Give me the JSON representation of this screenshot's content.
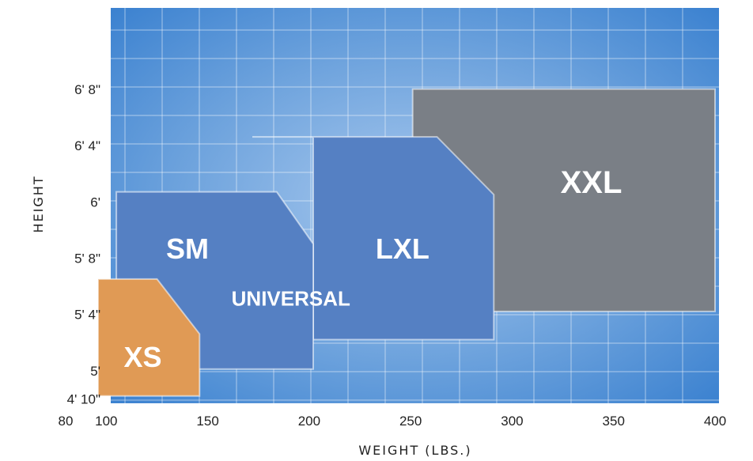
{
  "chart_data": {
    "type": "area",
    "xlabel": "WEIGHT (LBS.)",
    "ylabel": "HEIGHT",
    "x_ticks": [
      {
        "value": 80,
        "label": "80"
      },
      {
        "value": 100,
        "label": "100"
      },
      {
        "value": 150,
        "label": "150"
      },
      {
        "value": 200,
        "label": "200"
      },
      {
        "value": 250,
        "label": "250"
      },
      {
        "value": 300,
        "label": "300"
      },
      {
        "value": 350,
        "label": "350"
      },
      {
        "value": 400,
        "label": "400"
      }
    ],
    "y_ticks": [
      {
        "value": 58,
        "label": "4' 10\""
      },
      {
        "value": 60,
        "label": "5'"
      },
      {
        "value": 64,
        "label": "5' 4\""
      },
      {
        "value": 68,
        "label": "5' 8\""
      },
      {
        "value": 72,
        "label": "6'"
      },
      {
        "value": 76,
        "label": "6' 4\""
      },
      {
        "value": 80,
        "label": "6' 8\""
      }
    ],
    "xlim": [
      80,
      400
    ],
    "ylim": [
      58,
      82
    ],
    "regions": [
      {
        "name": "XXL",
        "color": "#7a7f86",
        "polygon": [
          [
            251,
            80.1
          ],
          [
            400,
            80.1
          ],
          [
            400,
            64.3
          ],
          [
            251,
            64.3
          ]
        ],
        "label": {
          "text": "XXL",
          "x": 339,
          "y": 73.3,
          "size": 40
        }
      },
      {
        "name": "LXL",
        "color": "#5580c3",
        "polygon": [
          [
            172,
            76.7
          ],
          [
            263,
            76.7
          ],
          [
            291,
            72.6
          ],
          [
            291,
            64.3
          ],
          [
            291,
            62.3
          ],
          [
            202,
            62.3
          ],
          [
            202,
            76.7
          ]
        ],
        "label": {
          "text": "LXL",
          "x": 246,
          "y": 68.6,
          "size": 36
        }
      },
      {
        "name": "UNIVERSAL",
        "color": "#5580c3",
        "polygon": [
          [
            105,
            72.8
          ],
          [
            184,
            72.8
          ],
          [
            202,
            69.1
          ],
          [
            202,
            60.2
          ],
          [
            150,
            60.2
          ],
          [
            105,
            60.2
          ]
        ],
        "label": {
          "text": "SM",
          "x": 140,
          "y": 68.6,
          "size": 36
        }
      },
      {
        "name": "XS",
        "color": "#e09a55",
        "polygon": [
          [
            96,
            66.6
          ],
          [
            125,
            66.6
          ],
          [
            146,
            62.7
          ],
          [
            146,
            58.3
          ],
          [
            96,
            58.3
          ]
        ],
        "label": {
          "text": "XS",
          "x": 118,
          "y": 60.9,
          "size": 36
        }
      }
    ],
    "annotations": [
      {
        "text": "UNIVERSAL",
        "x": 191,
        "y": 65.1,
        "size": 26
      }
    ]
  }
}
